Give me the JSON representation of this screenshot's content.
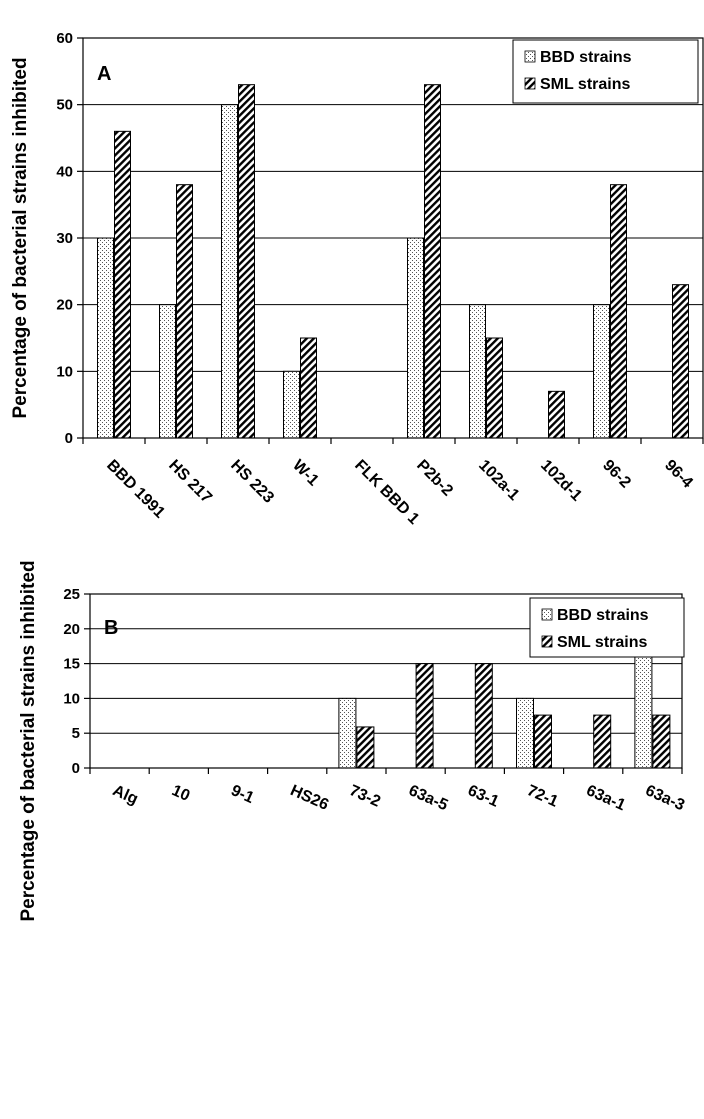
{
  "chart_data": [
    {
      "type": "bar",
      "panel_label": "A",
      "ylabel": "Percentage of bacterial strains inhibited",
      "ylim": [
        0,
        60
      ],
      "yticks": [
        0,
        10,
        20,
        30,
        40,
        50,
        60
      ],
      "grid": true,
      "legend_position": "top-right",
      "categories": [
        "BBD 1991",
        "HS 217",
        "HS 223",
        "W-1",
        "FLK BBD 1",
        "P2b-2",
        "102a-1",
        "102d-1",
        "96-2",
        "96-4"
      ],
      "series": [
        {
          "name": "BBD strains",
          "values": [
            30,
            20,
            50,
            10,
            0,
            30,
            20,
            0,
            20,
            0
          ]
        },
        {
          "name": "SML strains",
          "values": [
            46,
            38,
            53,
            15,
            0,
            53,
            15,
            7,
            38,
            23
          ]
        }
      ]
    },
    {
      "type": "bar",
      "panel_label": "B",
      "ylabel": "Percentage of bacterial strains inhibited",
      "ylim": [
        0,
        25
      ],
      "yticks": [
        0,
        5,
        10,
        15,
        20,
        25
      ],
      "grid": true,
      "legend_position": "top-right",
      "categories": [
        "Alg",
        "10",
        "9-1",
        "HS26",
        "73-2",
        "63a-5",
        "63-1",
        "72-1",
        "63a-1",
        "63a-3"
      ],
      "series": [
        {
          "name": "BBD strains",
          "values": [
            0,
            0,
            0,
            0,
            10,
            0,
            0,
            10,
            0,
            20
          ]
        },
        {
          "name": "SML strains",
          "values": [
            0,
            0,
            0,
            0,
            5.9,
            15,
            15,
            7.6,
            7.6,
            7.6
          ]
        }
      ]
    }
  ]
}
